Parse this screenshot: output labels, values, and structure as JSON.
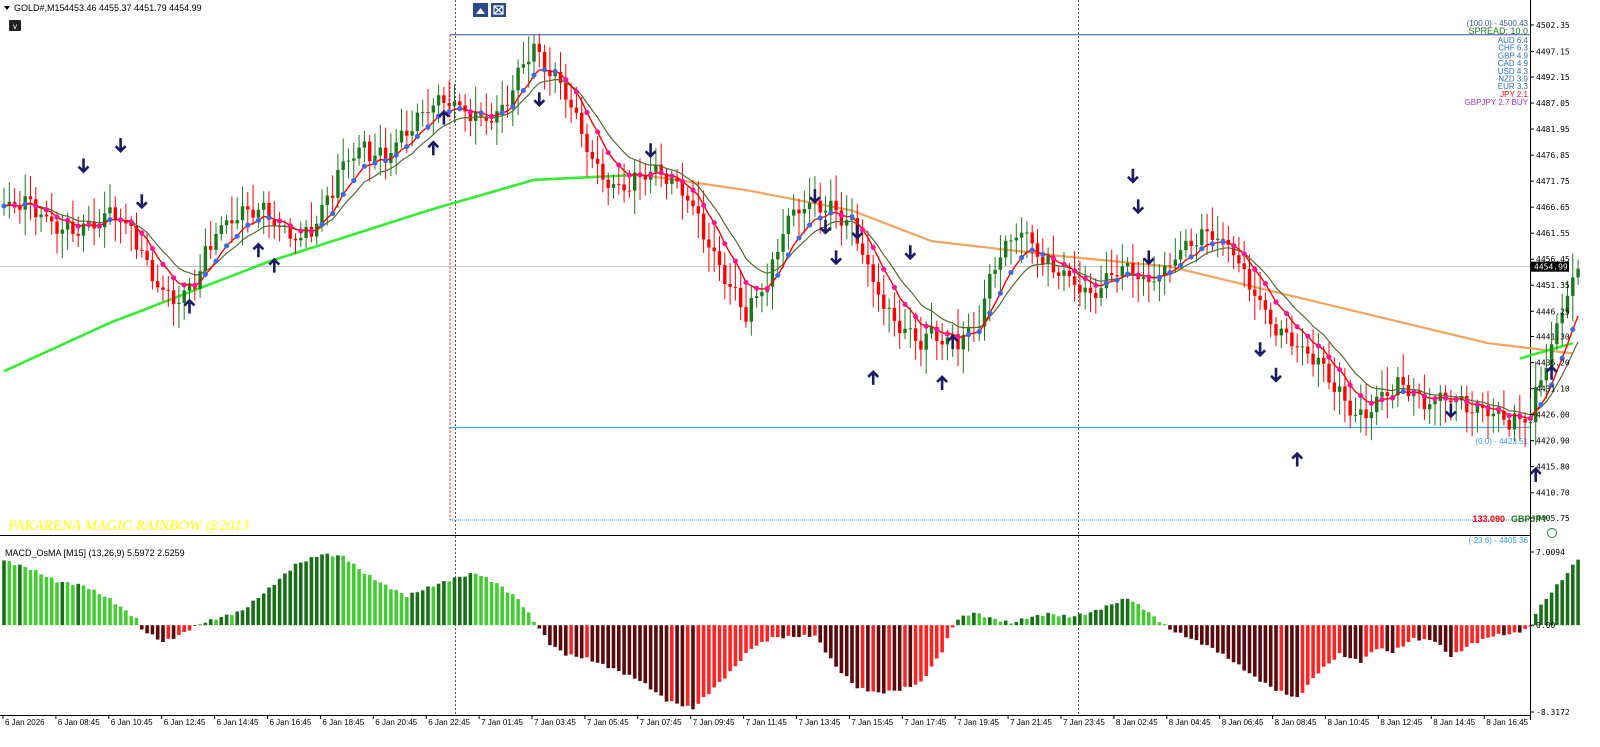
{
  "window": {
    "symbol_label": "GOLD#,M15",
    "ohlc_label": "4453.46 4455.37 4451.79 4454.99",
    "collapse_icon": "triangle-down-icon",
    "toolbox_label": "v"
  },
  "colors": {
    "bull_candle": "#1a7a1a",
    "bear_candle": "#ff0000",
    "bull_dot": "#4169e1",
    "bear_dot": "#ff1493",
    "fast_ma": "#ff0000",
    "slow_ma": "#556b2f",
    "ma_green": "#33ee33",
    "ma_orange": "#f4a460",
    "arrow": "#1a1a66",
    "fib_top": "#3355aa",
    "fib_bottom": "#3399ff",
    "macd_dark_green": "#1a6e1a",
    "macd_light_green": "#44cc33",
    "macd_dark_red": "#5a0a0a",
    "macd_light_red": "#ff2222"
  },
  "watermark": "PAKARENA MAGIC RAINBOW @2013",
  "info_panel": {
    "fib_top_label": "(100.0) - 4500.43",
    "spread_label": "SPREAD: 10.0",
    "currencies": [
      {
        "label": "AUD  6.4",
        "color": "#2b6fbf"
      },
      {
        "label": "CHF  6.3",
        "color": "#2b6fbf"
      },
      {
        "label": "GBP  4.9",
        "color": "#2b6fbf"
      },
      {
        "label": "CAD  4.9",
        "color": "#2b6fbf"
      },
      {
        "label": "USD  4.3",
        "color": "#2b6fbf"
      },
      {
        "label": "NZD  3.9",
        "color": "#2b6fbf"
      },
      {
        "label": "EUR  3.3",
        "color": "#2b6fbf"
      },
      {
        "label": "JPY  2.1",
        "color": "#ff0000"
      }
    ],
    "pair_signal": "GBPJPY 2.7 BUY",
    "fib_bottom_label": "(0.0) - 4423.51",
    "fib_ext_label": "(-23.6) - 4405.36",
    "pair_price": "133.090",
    "pair_name": "GBPJPY"
  },
  "chart_data": [
    {
      "type": "candlestick",
      "title": "",
      "ylim": [
        4403.0,
        4504.5
      ],
      "y_ticks": [
        "4502.35",
        "4497.15",
        "4492.15",
        "4487.05",
        "4481.95",
        "4476.85",
        "4471.75",
        "4466.65",
        "4461.55",
        "4456.45",
        "4451.35",
        "4446.25",
        "4441.30",
        "4436.20",
        "4431.10",
        "4426.00",
        "4420.90",
        "4415.80",
        "4410.70",
        "4405.75"
      ],
      "current_price": "4454.99",
      "current_price_value": 4454.99,
      "x_ticks": [
        "6 Jan 2026",
        "6 Jan 08:45",
        "6 Jan 10:45",
        "6 Jan 12:45",
        "6 Jan 14:45",
        "6 Jan 16:45",
        "6 Jan 18:45",
        "6 Jan 20:45",
        "6 Jan 22:45",
        "7 Jan 01:45",
        "7 Jan 03:45",
        "7 Jan 05:45",
        "7 Jan 07:45",
        "7 Jan 09:45",
        "7 Jan 11:45",
        "7 Jan 13:45",
        "7 Jan 15:45",
        "7 Jan 17:45",
        "7 Jan 19:45",
        "7 Jan 21:45",
        "7 Jan 23:45",
        "8 Jan 02:45",
        "8 Jan 04:45",
        "8 Jan 06:45",
        "8 Jan 08:45",
        "8 Jan 10:45",
        "8 Jan 12:45",
        "8 Jan 14:45",
        "8 Jan 16:45"
      ],
      "fib_levels": [
        {
          "level": 100.0,
          "price": 4500.43
        },
        {
          "level": 0.0,
          "price": 4423.51
        },
        {
          "level": -23.6,
          "price": 4405.36
        }
      ],
      "close_path": [
        [
          0,
          4466
        ],
        [
          4,
          4468
        ],
        [
          8,
          4464
        ],
        [
          12,
          4462
        ],
        [
          16,
          4463
        ],
        [
          20,
          4466
        ],
        [
          24,
          4462
        ],
        [
          28,
          4452
        ],
        [
          32,
          4448
        ],
        [
          36,
          4452
        ],
        [
          40,
          4462
        ],
        [
          44,
          4465
        ],
        [
          48,
          4467
        ],
        [
          52,
          4462
        ],
        [
          56,
          4460
        ],
        [
          60,
          4466
        ],
        [
          64,
          4475
        ],
        [
          68,
          4478
        ],
        [
          72,
          4476
        ],
        [
          76,
          4482
        ],
        [
          80,
          4486
        ],
        [
          84,
          4487
        ],
        [
          88,
          4485
        ],
        [
          92,
          4483
        ],
        [
          96,
          4490
        ],
        [
          100,
          4498
        ],
        [
          104,
          4492
        ],
        [
          108,
          4484
        ],
        [
          112,
          4474
        ],
        [
          116,
          4470
        ],
        [
          120,
          4472
        ],
        [
          124,
          4474
        ],
        [
          128,
          4470
        ],
        [
          132,
          4462
        ],
        [
          136,
          4452
        ],
        [
          140,
          4446
        ],
        [
          144,
          4452
        ],
        [
          148,
          4465
        ],
        [
          152,
          4467
        ],
        [
          156,
          4466
        ],
        [
          160,
          4463
        ],
        [
          164,
          4452
        ],
        [
          168,
          4444
        ],
        [
          172,
          4440
        ],
        [
          176,
          4442
        ],
        [
          180,
          4440
        ],
        [
          184,
          4445
        ],
        [
          188,
          4458
        ],
        [
          192,
          4462
        ],
        [
          196,
          4456
        ],
        [
          200,
          4454
        ],
        [
          204,
          4450
        ],
        [
          208,
          4452
        ],
        [
          212,
          4455
        ],
        [
          216,
          4452
        ],
        [
          220,
          4456
        ],
        [
          224,
          4460
        ],
        [
          228,
          4462
        ],
        [
          232,
          4458
        ],
        [
          236,
          4450
        ],
        [
          240,
          4442
        ],
        [
          244,
          4440
        ],
        [
          248,
          4436
        ],
        [
          252,
          4430
        ],
        [
          256,
          4425
        ],
        [
          260,
          4430
        ],
        [
          264,
          4432
        ],
        [
          268,
          4428
        ],
        [
          272,
          4429
        ],
        [
          276,
          4428
        ],
        [
          280,
          4427
        ],
        [
          284,
          4424
        ],
        [
          288,
          4426
        ],
        [
          292,
          4440
        ],
        [
          296,
          4453
        ]
      ],
      "ma_green_path": [
        [
          0,
          4434.5
        ],
        [
          20,
          4444
        ],
        [
          50,
          4456
        ],
        [
          80,
          4466
        ],
        [
          100,
          4472
        ],
        [
          120,
          4473
        ]
      ],
      "ma_green_tail_path": [
        [
          286,
          4437
        ],
        [
          296,
          4440
        ]
      ],
      "ma_orange_path": [
        [
          120,
          4473
        ],
        [
          140,
          4470
        ],
        [
          160,
          4466
        ],
        [
          175,
          4460
        ],
        [
          200,
          4457
        ],
        [
          220,
          4455
        ],
        [
          240,
          4450
        ],
        [
          260,
          4445
        ],
        [
          280,
          4440
        ],
        [
          296,
          4438
        ]
      ],
      "arrows": [
        {
          "i": 15,
          "dir": "down",
          "price": 4475
        },
        {
          "i": 22,
          "dir": "down",
          "price": 4479
        },
        {
          "i": 26,
          "dir": "down",
          "price": 4468
        },
        {
          "i": 35,
          "dir": "up",
          "price": 4447
        },
        {
          "i": 48,
          "dir": "up",
          "price": 4458
        },
        {
          "i": 51,
          "dir": "up",
          "price": 4455
        },
        {
          "i": 81,
          "dir": "up",
          "price": 4478
        },
        {
          "i": 83,
          "dir": "up",
          "price": 4484
        },
        {
          "i": 101,
          "dir": "down",
          "price": 4488
        },
        {
          "i": 122,
          "dir": "down",
          "price": 4478
        },
        {
          "i": 153,
          "dir": "down",
          "price": 4469
        },
        {
          "i": 155,
          "dir": "down",
          "price": 4463
        },
        {
          "i": 157,
          "dir": "down",
          "price": 4457
        },
        {
          "i": 161,
          "dir": "down",
          "price": 4462
        },
        {
          "i": 164,
          "dir": "up",
          "price": 4433
        },
        {
          "i": 171,
          "dir": "down",
          "price": 4458
        },
        {
          "i": 177,
          "dir": "up",
          "price": 4432
        },
        {
          "i": 179,
          "dir": "up",
          "price": 4440
        },
        {
          "i": 213,
          "dir": "down",
          "price": 4473
        },
        {
          "i": 214,
          "dir": "down",
          "price": 4467
        },
        {
          "i": 216,
          "dir": "down",
          "price": 4457
        },
        {
          "i": 237,
          "dir": "down",
          "price": 4439
        },
        {
          "i": 240,
          "dir": "down",
          "price": 4434
        },
        {
          "i": 244,
          "dir": "up",
          "price": 4417
        },
        {
          "i": 273,
          "dir": "down",
          "price": 4427
        },
        {
          "i": 289,
          "dir": "up",
          "price": 4414
        },
        {
          "i": 292,
          "dir": "up",
          "price": 4434
        }
      ]
    },
    {
      "type": "bar",
      "title": "MACD_OsMA [M15] (13,26,9) 5.5972 2.5259",
      "ylim": [
        -8.3172,
        7.0094
      ],
      "y_ticks": [
        "7.0094",
        "0.00",
        "-8.3172"
      ],
      "histogram": [
        [
          0,
          6.2
        ],
        [
          5,
          5.4
        ],
        [
          10,
          4.2
        ],
        [
          15,
          3.8
        ],
        [
          20,
          2.5
        ],
        [
          25,
          0.6
        ],
        [
          26,
          -0.4
        ],
        [
          30,
          -1.6
        ],
        [
          33,
          -1.0
        ],
        [
          36,
          -0.1
        ],
        [
          38,
          0.3
        ],
        [
          45,
          1.4
        ],
        [
          50,
          3.5
        ],
        [
          55,
          5.8
        ],
        [
          60,
          6.8
        ],
        [
          64,
          6.6
        ],
        [
          68,
          5.0
        ],
        [
          72,
          3.8
        ],
        [
          76,
          2.8
        ],
        [
          80,
          3.6
        ],
        [
          85,
          4.5
        ],
        [
          89,
          5.0
        ],
        [
          93,
          4.0
        ],
        [
          97,
          2.5
        ],
        [
          100,
          0.4
        ],
        [
          101,
          -0.3
        ],
        [
          103,
          -1.8
        ],
        [
          106,
          -2.8
        ],
        [
          110,
          -3.2
        ],
        [
          115,
          -4.2
        ],
        [
          120,
          -5.3
        ],
        [
          125,
          -7.2
        ],
        [
          130,
          -8.0
        ],
        [
          133,
          -6.5
        ],
        [
          137,
          -4.5
        ],
        [
          141,
          -2.2
        ],
        [
          145,
          -1.2
        ],
        [
          149,
          -1.1
        ],
        [
          153,
          -1.0
        ],
        [
          157,
          -4.0
        ],
        [
          161,
          -6.0
        ],
        [
          165,
          -6.5
        ],
        [
          169,
          -6.2
        ],
        [
          173,
          -5.5
        ],
        [
          177,
          -2.5
        ],
        [
          179,
          -0.2
        ],
        [
          180,
          0.6
        ],
        [
          183,
          1.2
        ],
        [
          186,
          0.7
        ],
        [
          190,
          0.2
        ],
        [
          193,
          0.7
        ],
        [
          197,
          1.1
        ],
        [
          201,
          0.8
        ],
        [
          205,
          1.2
        ],
        [
          209,
          2.0
        ],
        [
          212,
          2.6
        ],
        [
          215,
          1.6
        ],
        [
          218,
          0.4
        ],
        [
          220,
          -0.4
        ],
        [
          224,
          -1.3
        ],
        [
          228,
          -2.2
        ],
        [
          232,
          -3.5
        ],
        [
          236,
          -5.0
        ],
        [
          240,
          -6.2
        ],
        [
          244,
          -7.0
        ],
        [
          248,
          -4.5
        ],
        [
          252,
          -2.8
        ],
        [
          256,
          -3.5
        ],
        [
          259,
          -2.2
        ],
        [
          262,
          -2.6
        ],
        [
          266,
          -1.3
        ],
        [
          270,
          -1.5
        ],
        [
          273,
          -3.0
        ],
        [
          277,
          -1.8
        ],
        [
          281,
          -1.0
        ],
        [
          285,
          -0.8
        ],
        [
          288,
          -0.2
        ],
        [
          289,
          1.2
        ],
        [
          292,
          3.2
        ],
        [
          295,
          5.0
        ],
        [
          297,
          6.4
        ]
      ]
    }
  ]
}
